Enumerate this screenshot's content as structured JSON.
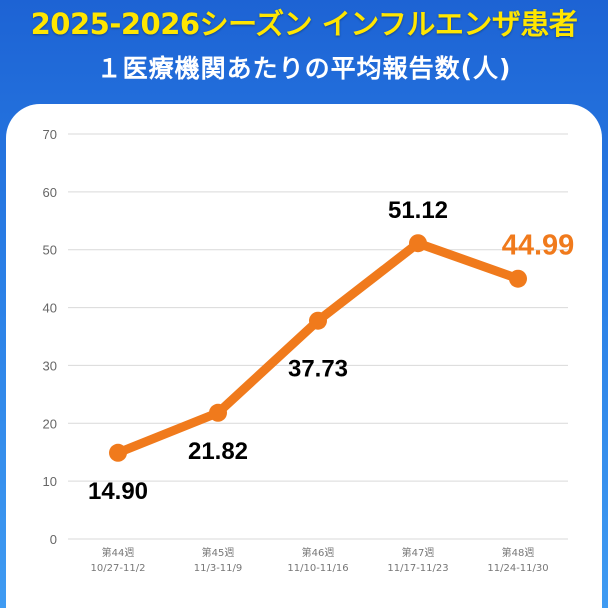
{
  "header": {
    "title": "2025-2026シーズン インフルエンザ患者",
    "subtitle": "１医療機関あたりの平均報告数(人)"
  },
  "colors": {
    "line": "#f07a1c",
    "highlight_label": "#f07a1c",
    "label": "#000000",
    "title": "#ffe600",
    "background": "#2a7fe6"
  },
  "chart_data": {
    "type": "line",
    "title": "",
    "xlabel": "",
    "ylabel": "",
    "ylim": [
      0,
      70
    ],
    "yticks": [
      0,
      10,
      20,
      30,
      40,
      50,
      60,
      70
    ],
    "grid": true,
    "categories": [
      [
        "第44週",
        "10/27-11/2"
      ],
      [
        "第45週",
        "11/3-11/9"
      ],
      [
        "第46週",
        "11/10-11/16"
      ],
      [
        "第47週",
        "11/17-11/23"
      ],
      [
        "第48週",
        "11/24-11/30"
      ]
    ],
    "series": [
      {
        "values": [
          14.9,
          21.82,
          37.73,
          51.12,
          44.99
        ],
        "labels": [
          "14.90",
          "21.82",
          "37.73",
          "51.12",
          "44.99"
        ],
        "highlight_index": 4
      }
    ]
  }
}
